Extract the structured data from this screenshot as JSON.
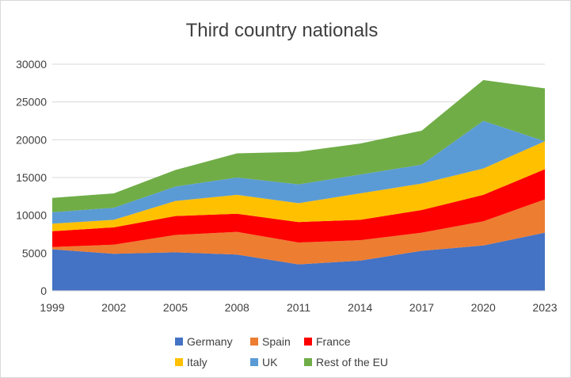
{
  "chart_data": {
    "type": "area",
    "stacked": true,
    "title": "Third country nationals",
    "xlabel": "",
    "ylabel": "",
    "x": [
      1999,
      2002,
      2005,
      2008,
      2011,
      2014,
      2017,
      2020,
      2023
    ],
    "x_tick_labels": [
      "1999",
      "2002",
      "2005",
      "2008",
      "2011",
      "2014",
      "2017",
      "2020",
      "2023"
    ],
    "ylim": [
      0,
      30000
    ],
    "y_ticks": [
      0,
      5000,
      10000,
      15000,
      20000,
      25000,
      30000
    ],
    "y_tick_labels": [
      "0",
      "5000",
      "10000",
      "15000",
      "20000",
      "25000",
      "30000"
    ],
    "grid": true,
    "legend_position": "bottom",
    "series": [
      {
        "name": "Germany",
        "color": "#4472c4",
        "values": [
          5500,
          4900,
          5100,
          4800,
          3500,
          4000,
          5300,
          6000,
          7700
        ]
      },
      {
        "name": "Spain",
        "color": "#ed7d31",
        "values": [
          300,
          1200,
          2300,
          3000,
          2900,
          2700,
          2400,
          3200,
          4400
        ]
      },
      {
        "name": "France",
        "color": "#ff0000",
        "values": [
          2100,
          2300,
          2500,
          2400,
          2700,
          2700,
          3000,
          3500,
          4000
        ]
      },
      {
        "name": "Italy",
        "color": "#ffc000",
        "values": [
          1000,
          1000,
          2000,
          2500,
          2500,
          3500,
          3500,
          3500,
          3700
        ]
      },
      {
        "name": "UK",
        "color": "#5b9bd5",
        "values": [
          1500,
          1600,
          1900,
          2300,
          2500,
          2500,
          2500,
          6300,
          0
        ]
      },
      {
        "name": "Rest of the EU",
        "color": "#70ad47",
        "values": [
          1900,
          1900,
          2200,
          3200,
          4300,
          4100,
          4500,
          5400,
          7000
        ]
      }
    ]
  }
}
